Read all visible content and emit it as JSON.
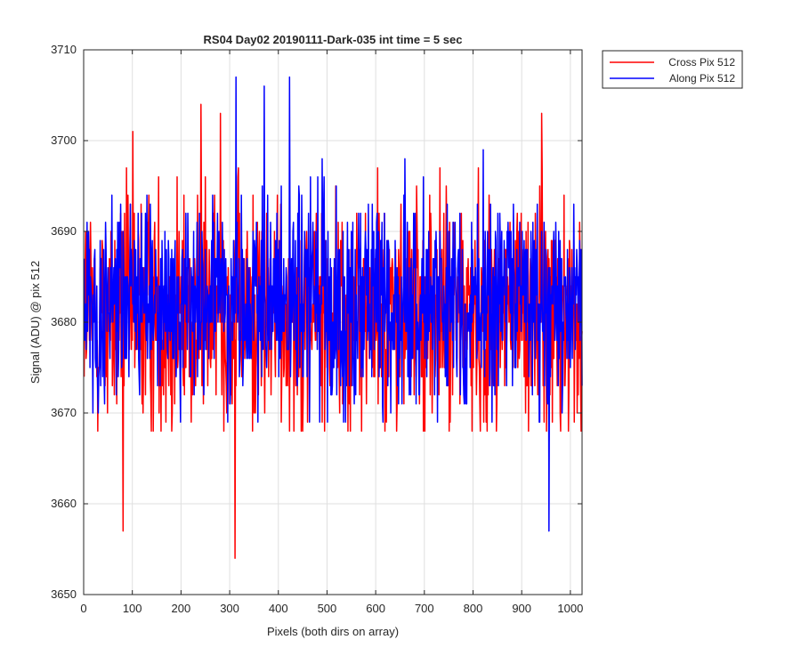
{
  "chart_data": {
    "type": "line",
    "title": "RS04 Day02 20190111-Dark-035 int time = 5 sec",
    "xlabel": "Pixels (both dirs on array)",
    "ylabel": "Signal (ADU) @ pix 512",
    "xlim": [
      0,
      1024
    ],
    "ylim": [
      3650,
      3710
    ],
    "xticks": [
      0,
      100,
      200,
      300,
      400,
      500,
      600,
      700,
      800,
      900,
      1000
    ],
    "yticks": [
      3650,
      3660,
      3670,
      3680,
      3690,
      3700,
      3710
    ],
    "grid": true,
    "legend_position": "outside-top-right",
    "series": [
      {
        "name": "Cross Pix 512",
        "color": "#ff0000",
        "mean": 3681,
        "noise_sd": 6.5,
        "seed": 12345,
        "points": 1024,
        "extremes": [
          [
            80,
            3657
          ],
          [
            310,
            3654
          ],
          [
            240,
            3704
          ],
          [
            280,
            3703
          ],
          [
            940,
            3703
          ],
          [
            100,
            3701
          ]
        ]
      },
      {
        "name": "Along Pix 512",
        "color": "#0000ff",
        "mean": 3682,
        "noise_sd": 5.8,
        "seed": 67890,
        "points": 1024,
        "extremes": [
          [
            312,
            3707
          ],
          [
            422,
            3707
          ],
          [
            370,
            3706
          ],
          [
            955,
            3657
          ],
          [
            820,
            3699
          ]
        ]
      }
    ]
  }
}
